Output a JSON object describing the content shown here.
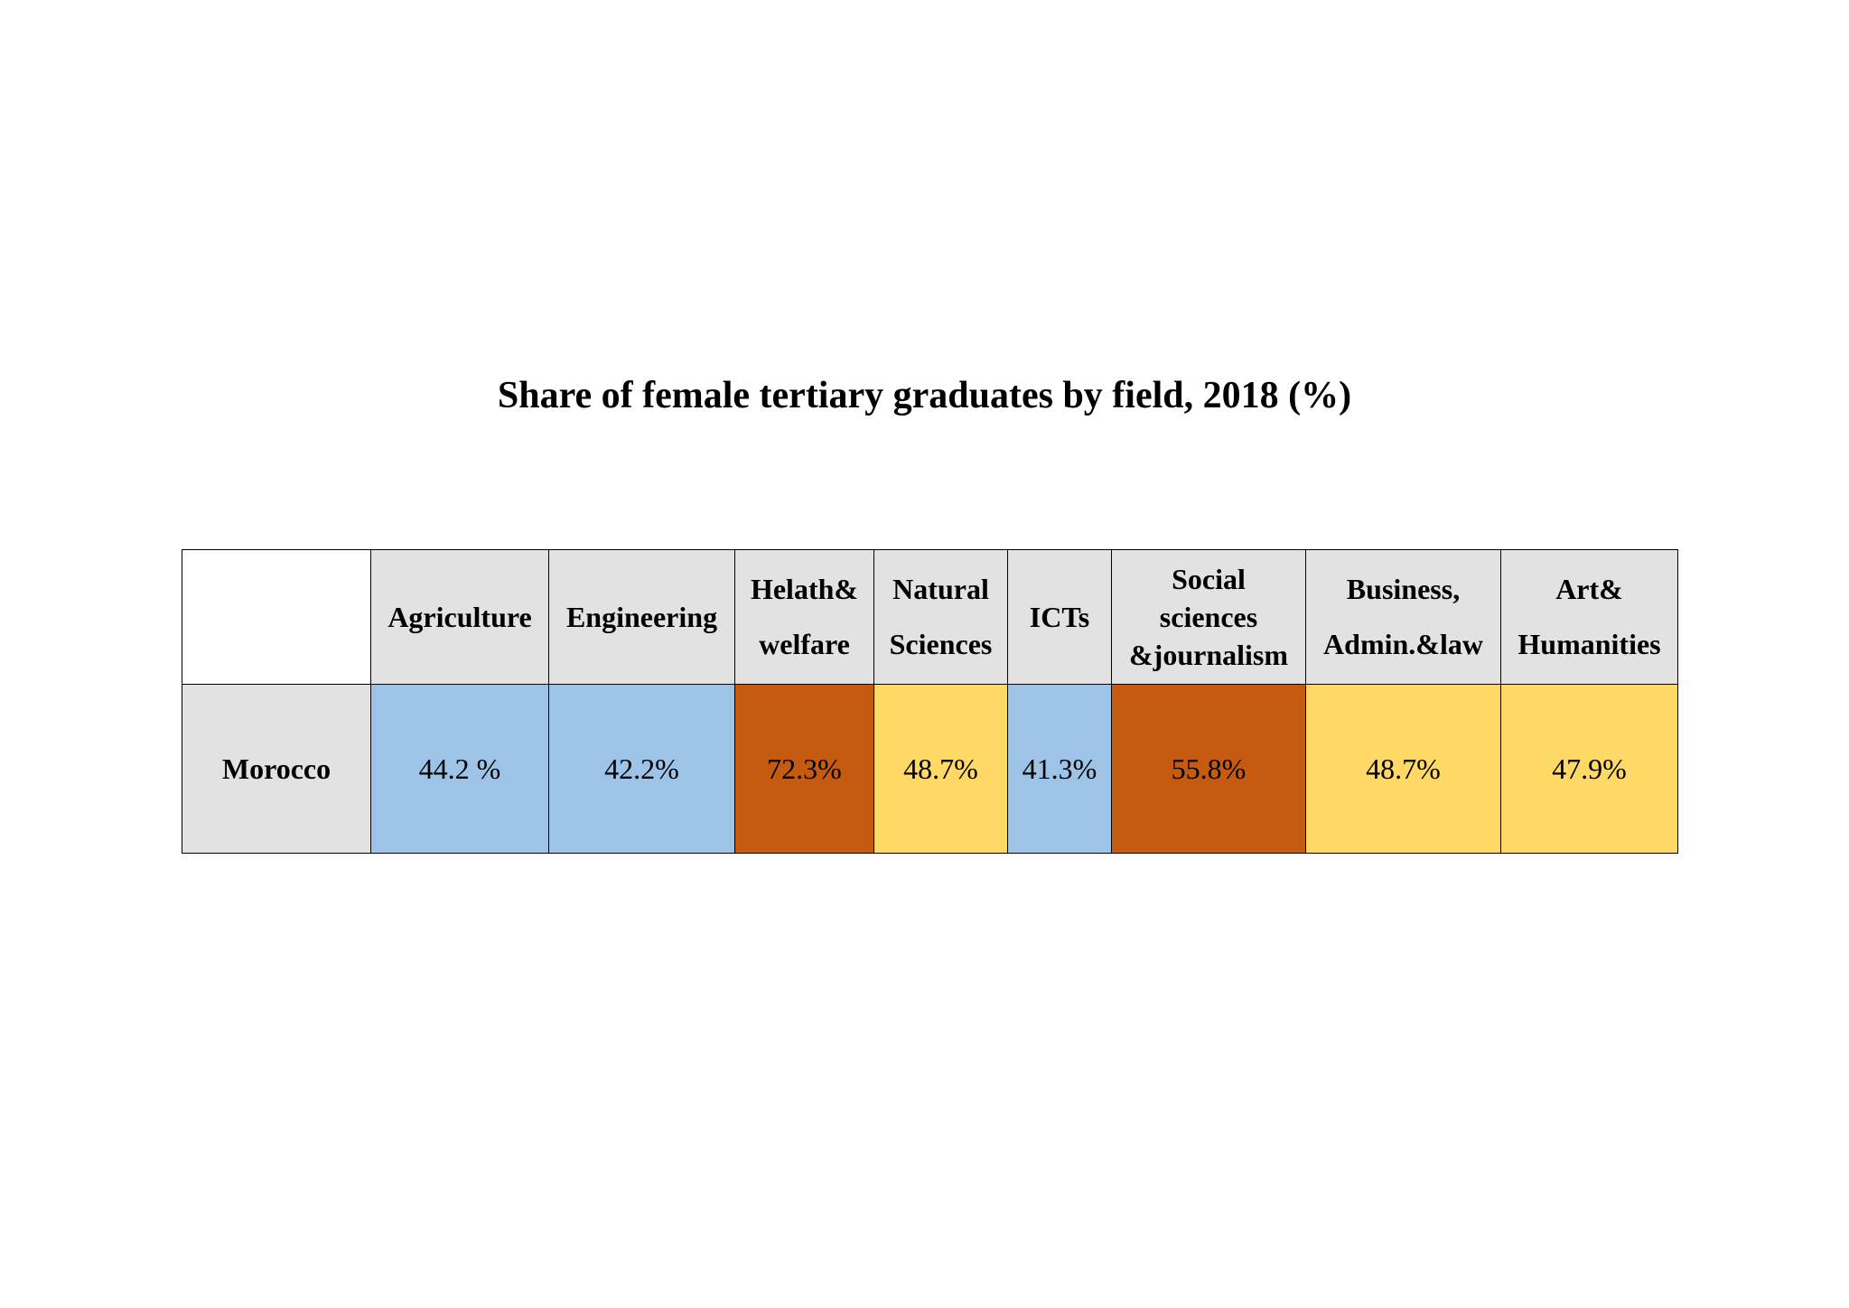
{
  "chart_data": {
    "type": "table",
    "title": "Share of female tertiary graduates by field, 2018 (%)",
    "columns": [
      {
        "lines": [
          "Agriculture"
        ]
      },
      {
        "lines": [
          "Engineering"
        ]
      },
      {
        "lines": [
          "Helath&",
          "welfare"
        ]
      },
      {
        "lines": [
          "Natural",
          "Sciences"
        ]
      },
      {
        "lines": [
          "ICTs"
        ]
      },
      {
        "lines": [
          "Social",
          "sciences",
          "&journalism"
        ]
      },
      {
        "lines": [
          "Business,",
          "Admin.&law"
        ]
      },
      {
        "lines": [
          "Art&",
          "Humanities"
        ]
      }
    ],
    "rows": [
      {
        "label": "Morocco",
        "cells": [
          {
            "text": "44.2 %",
            "value": 44.2,
            "color": "#9dc3e6"
          },
          {
            "text": "42.2%",
            "value": 42.2,
            "color": "#9dc3e6"
          },
          {
            "text": "72.3%",
            "value": 72.3,
            "color": "#c55a11"
          },
          {
            "text": "48.7%",
            "value": 48.7,
            "color": "#ffd966"
          },
          {
            "text": "41.3%",
            "value": 41.3,
            "color": "#9dc3e6"
          },
          {
            "text": "55.8%",
            "value": 55.8,
            "color": "#c55a11"
          },
          {
            "text": "48.7%",
            "value": 48.7,
            "color": "#ffd966"
          },
          {
            "text": "47.9%",
            "value": 47.9,
            "color": "#ffd966"
          }
        ]
      }
    ]
  }
}
